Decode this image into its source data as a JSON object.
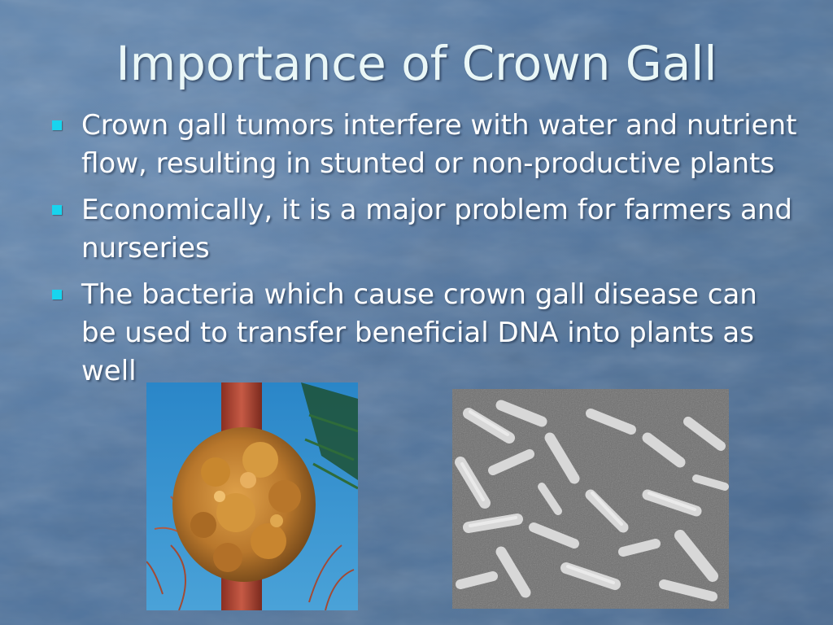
{
  "slide": {
    "title": "Importance of Crown Gall",
    "bullets": [
      "Crown gall tumors interfere with water and nutrient flow, resulting in stunted or non-productive plants",
      "Economically, it is a major problem for farmers and nurseries",
      "The bacteria which cause crown gall disease can be used to transfer beneficial DNA into plants as well"
    ]
  },
  "images": {
    "left": "crown-gall-tumor-photo",
    "right": "bacteria-micrograph"
  },
  "colors": {
    "background": "#56799f",
    "title_text": "#eaf7f7",
    "bullet_marker": "#18d4ee"
  }
}
